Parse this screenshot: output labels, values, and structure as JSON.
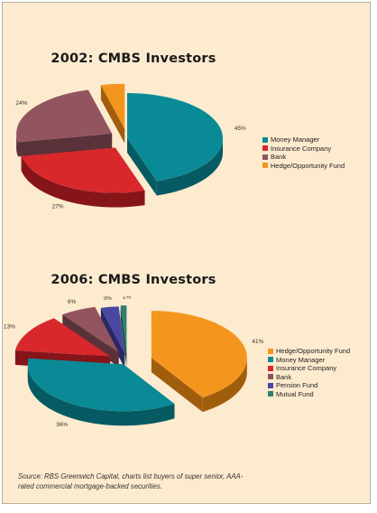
{
  "chart_data": [
    {
      "type": "pie",
      "title": "2002: CMBS Investors",
      "slices": [
        {
          "label": "Money Manager",
          "value": 45,
          "color": "#0a8a96",
          "dark": "#065a62",
          "display": "45%"
        },
        {
          "label": "Insurance Company",
          "value": 27,
          "color": "#d8282c",
          "dark": "#86151a",
          "display": "27%"
        },
        {
          "label": "Bank",
          "value": 24,
          "color": "#925560",
          "dark": "#59323a",
          "display": "24%"
        },
        {
          "label": "Hedge/Opportunity Fund",
          "value": 4,
          "color": "#f4961e",
          "dark": "#a05e0d",
          "display": "4%"
        }
      ],
      "legend": [
        "Money Manager",
        "Insurance Company",
        "Bank",
        "Hedge/Opportunity Fund"
      ]
    },
    {
      "type": "pie",
      "title": "2006: CMBS Investors",
      "slices": [
        {
          "label": "Hedge/Opportunity Fund",
          "value": 41,
          "color": "#f4961e",
          "dark": "#a05e0d",
          "display": "41%"
        },
        {
          "label": "Money Manager",
          "value": 36,
          "color": "#0a8a96",
          "dark": "#065a62",
          "display": "36%"
        },
        {
          "label": "Insurance Company",
          "value": 13,
          "color": "#d8282c",
          "dark": "#86151a",
          "display": "13%"
        },
        {
          "label": "Bank",
          "value": 6,
          "color": "#925560",
          "dark": "#59323a",
          "display": "6%"
        },
        {
          "label": "Pension Fund",
          "value": 3,
          "color": "#4a46a2",
          "dark": "#2a2766",
          "display": "3%"
        },
        {
          "label": "Mutual Fund",
          "value": 1,
          "color": "#2d8072",
          "dark": "#1a4d44",
          "display": "1%"
        }
      ],
      "legend": [
        "Hedge/Opportunity Fund",
        "Money Manager",
        "Insurance Company",
        "Bank",
        "Pension Fund",
        "Mutual Fund"
      ]
    }
  ],
  "source_note": "Source: RBS Greenwich Capital, charts list buyers of super senior, AAA-rated commercial mortgage-backed securities."
}
